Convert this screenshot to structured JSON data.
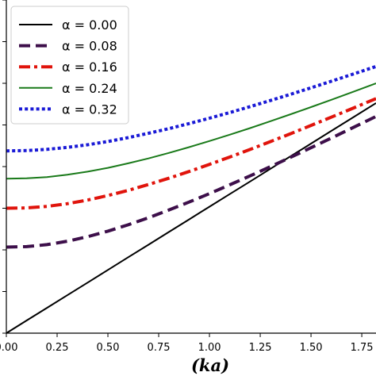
{
  "chart_data": {
    "type": "line",
    "title": "",
    "xlabel": "(ka)",
    "ylabel": "",
    "xlim": [
      0.0,
      1.82
    ],
    "ylim": [
      0.0,
      3.6
    ],
    "xticks": [
      0.0,
      0.25,
      0.5,
      0.75,
      1.0,
      1.25,
      1.5,
      1.75
    ],
    "xtick_labels": [
      "0.00",
      "0.25",
      "0.50",
      "0.75",
      "1.00",
      "1.25",
      "1.50",
      "1.75"
    ],
    "yticks": [
      0.0,
      0.45,
      0.9,
      1.35,
      1.8,
      2.25,
      2.7,
      3.15,
      3.6
    ],
    "grid": false,
    "legend_position": "top-left",
    "x": [
      0.0,
      0.1,
      0.2,
      0.3,
      0.4,
      0.5,
      0.6,
      0.7,
      0.8,
      0.9,
      1.0,
      1.1,
      1.2,
      1.3,
      1.4,
      1.5,
      1.6,
      1.7,
      1.82
    ],
    "series": [
      {
        "name": "α = 0.00",
        "color": "#000000",
        "style": "solid",
        "values": [
          0.0,
          0.137,
          0.273,
          0.41,
          0.546,
          0.683,
          0.82,
          0.956,
          1.093,
          1.229,
          1.366,
          1.503,
          1.639,
          1.776,
          1.912,
          2.049,
          2.186,
          2.322,
          2.486
        ]
      },
      {
        "name": "α = 0.08",
        "color": "#3d0f4a",
        "style": "dashed",
        "values": [
          0.93,
          0.935,
          0.957,
          0.993,
          1.042,
          1.102,
          1.171,
          1.247,
          1.33,
          1.417,
          1.508,
          1.603,
          1.7,
          1.799,
          1.901,
          2.004,
          2.108,
          2.214,
          2.342
        ]
      },
      {
        "name": "α = 0.16",
        "color": "#e0140c",
        "style": "dashdot",
        "values": [
          1.35,
          1.353,
          1.37,
          1.399,
          1.438,
          1.487,
          1.543,
          1.606,
          1.674,
          1.747,
          1.824,
          1.903,
          1.985,
          2.07,
          2.156,
          2.245,
          2.334,
          2.425,
          2.535
        ]
      },
      {
        "name": "α = 0.24",
        "color": "#1a7a1a",
        "style": "solid",
        "values": [
          1.67,
          1.673,
          1.687,
          1.712,
          1.745,
          1.786,
          1.835,
          1.888,
          1.947,
          2.01,
          2.076,
          2.145,
          2.216,
          2.29,
          2.366,
          2.443,
          2.522,
          2.602,
          2.7
        ]
      },
      {
        "name": "α = 0.32",
        "color": "#1a1ad6",
        "style": "dotted",
        "values": [
          1.97,
          1.973,
          1.986,
          2.007,
          2.036,
          2.071,
          2.113,
          2.16,
          2.21,
          2.265,
          2.323,
          2.384,
          2.448,
          2.514,
          2.582,
          2.651,
          2.722,
          2.794,
          2.882
        ]
      }
    ]
  }
}
